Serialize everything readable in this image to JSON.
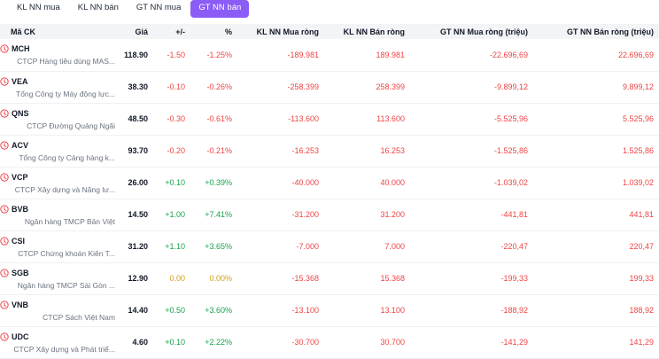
{
  "tabs": [
    {
      "label": "KL NN mua",
      "active": false
    },
    {
      "label": "KL NN bán",
      "active": false
    },
    {
      "label": "GT NN mua",
      "active": false
    },
    {
      "label": "GT NN bán",
      "active": true
    }
  ],
  "accent_color": "#8b5cf6",
  "table": {
    "headers": {
      "symbol": "Mã CK",
      "price": "Giá",
      "change": "+/-",
      "percent": "%",
      "buy_volume": "KL NN Mua ròng",
      "sell_volume": "KL NN Bán ròng",
      "buy_value": "GT NN Mua ròng (triệu)",
      "sell_value": "GT NN Bán ròng (triệu)"
    },
    "rows": [
      {
        "ticker": "MCH",
        "company": "CTCP Hàng tiêu dùng MAS...",
        "price": "118.90",
        "change": "-1.50",
        "percent": "-1.25%",
        "trend": "red",
        "buy_volume": "-189.981",
        "sell_volume": "189.981",
        "buy_value": "-22.696,69",
        "sell_value": "22.696,69"
      },
      {
        "ticker": "VEA",
        "company": "Tổng Công ty Máy động lực...",
        "price": "38.30",
        "change": "-0.10",
        "percent": "-0.26%",
        "trend": "red",
        "buy_volume": "-258.399",
        "sell_volume": "258.399",
        "buy_value": "-9.899,12",
        "sell_value": "9.899,12"
      },
      {
        "ticker": "QNS",
        "company": "CTCP Đường Quảng Ngãi",
        "price": "48.50",
        "change": "-0.30",
        "percent": "-0.61%",
        "trend": "red",
        "buy_volume": "-113.600",
        "sell_volume": "113.600",
        "buy_value": "-5.525,96",
        "sell_value": "5.525,96"
      },
      {
        "ticker": "ACV",
        "company": "Tổng Công ty Cảng hàng k...",
        "price": "93.70",
        "change": "-0.20",
        "percent": "-0.21%",
        "trend": "red",
        "buy_volume": "-16.253",
        "sell_volume": "16.253",
        "buy_value": "-1.525,86",
        "sell_value": "1.525,86"
      },
      {
        "ticker": "VCP",
        "company": "CTCP Xây dựng và Năng lư...",
        "price": "26.00",
        "change": "+0.10",
        "percent": "+0.39%",
        "trend": "green",
        "buy_volume": "-40.000",
        "sell_volume": "40.000",
        "buy_value": "-1.039,02",
        "sell_value": "1.039,02"
      },
      {
        "ticker": "BVB",
        "company": "Ngân hàng TMCP Bản Việt",
        "price": "14.50",
        "change": "+1.00",
        "percent": "+7.41%",
        "trend": "green",
        "buy_volume": "-31.200",
        "sell_volume": "31.200",
        "buy_value": "-441,81",
        "sell_value": "441,81"
      },
      {
        "ticker": "CSI",
        "company": "CTCP Chứng khoán Kiến T...",
        "price": "31.20",
        "change": "+1.10",
        "percent": "+3.65%",
        "trend": "green",
        "buy_volume": "-7.000",
        "sell_volume": "7.000",
        "buy_value": "-220,47",
        "sell_value": "220,47"
      },
      {
        "ticker": "SGB",
        "company": "Ngân hàng TMCP Sài Gòn ...",
        "price": "12.90",
        "change": "0.00",
        "percent": "0.00%",
        "trend": "yellow",
        "buy_volume": "-15.368",
        "sell_volume": "15.368",
        "buy_value": "-199,33",
        "sell_value": "199,33"
      },
      {
        "ticker": "VNB",
        "company": "CTCP Sách Việt Nam",
        "price": "14.40",
        "change": "+0.50",
        "percent": "+3.60%",
        "trend": "green",
        "buy_volume": "-13.100",
        "sell_volume": "13.100",
        "buy_value": "-188,92",
        "sell_value": "188,92"
      },
      {
        "ticker": "UDC",
        "company": "CTCP Xây dựng và Phát triể...",
        "price": "4.60",
        "change": "+0.10",
        "percent": "+2.22%",
        "trend": "green",
        "buy_volume": "-30.700",
        "sell_volume": "30.700",
        "buy_value": "-141,29",
        "sell_value": "141,29"
      }
    ]
  }
}
